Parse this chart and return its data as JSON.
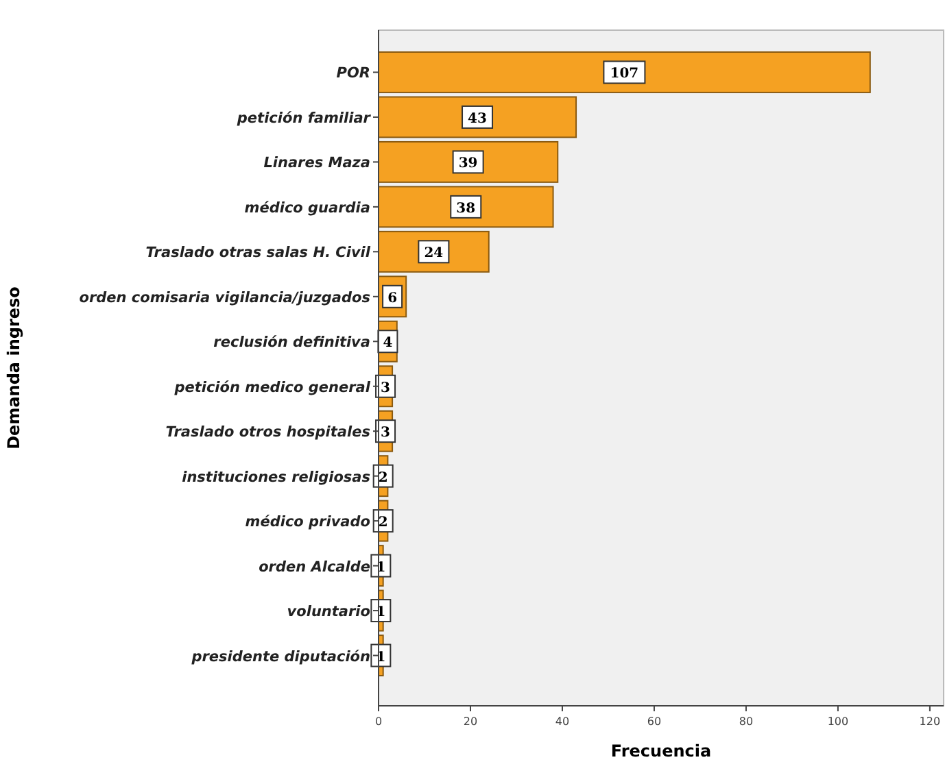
{
  "chart_data": {
    "type": "bar",
    "orientation": "horizontal",
    "xlabel": "Frecuencia",
    "ylabel": "Demanda ingreso",
    "categories": [
      "POR",
      "petición familiar",
      "Linares Maza",
      "médico guardia",
      "Traslado otras salas H. Civil",
      "orden comisaria vigilancia/juzgados",
      "reclusión definitiva",
      "petición medico general",
      "Traslado otros hospitales",
      "instituciones religiosas",
      "médico privado",
      "orden Alcalde",
      "voluntario",
      "presidente diputación"
    ],
    "values": [
      107,
      43,
      39,
      38,
      24,
      6,
      4,
      3,
      3,
      2,
      2,
      1,
      1,
      1
    ],
    "color": "#f5a122",
    "xlim": [
      0,
      123
    ],
    "xticks": [
      0,
      20,
      40,
      60,
      80,
      100,
      120
    ],
    "data_labels": true,
    "grid": false
  }
}
